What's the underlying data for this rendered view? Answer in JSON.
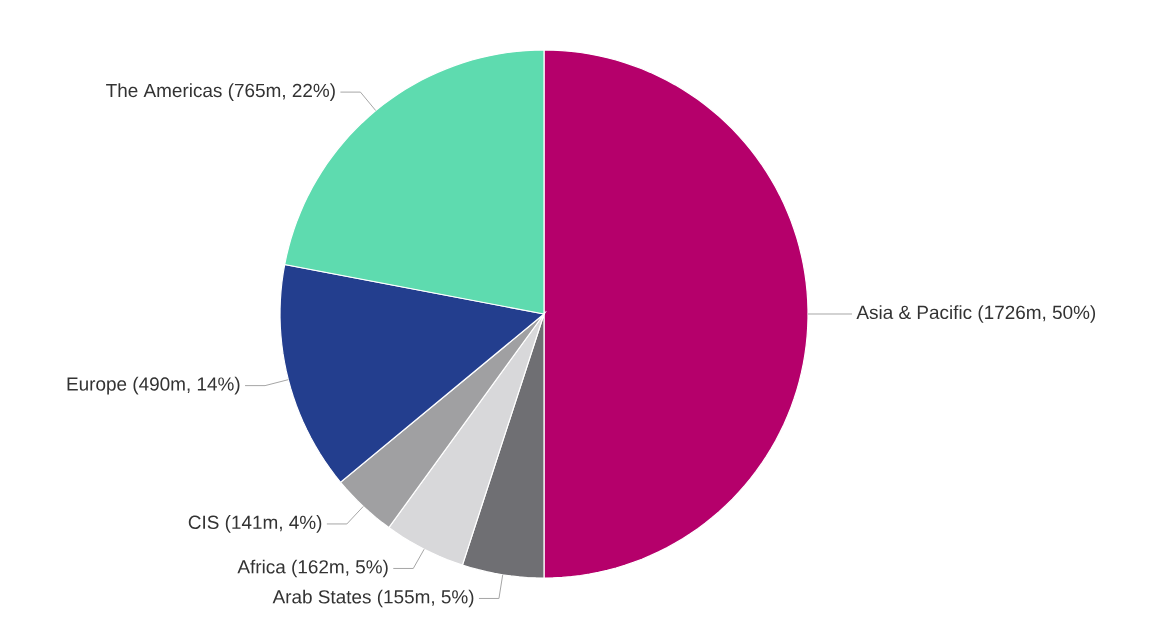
{
  "chart_data": {
    "type": "pie",
    "categories": [
      "Asia & Pacific",
      "Arab States",
      "Africa",
      "CIS",
      "Europe",
      "The Americas"
    ],
    "values": [
      50,
      5,
      5,
      4,
      14,
      22
    ],
    "value_labels": [
      "(1726m, 50%)",
      "(155m, 5%)",
      "(162m, 5%)",
      "(141m, 4%)",
      "(490m, 14%)",
      "(765m, 22%)"
    ],
    "colors": [
      "#b5006b",
      "#6f6f73",
      "#d8d8da",
      "#a0a0a2",
      "#233e8e",
      "#5edbaf"
    ]
  }
}
